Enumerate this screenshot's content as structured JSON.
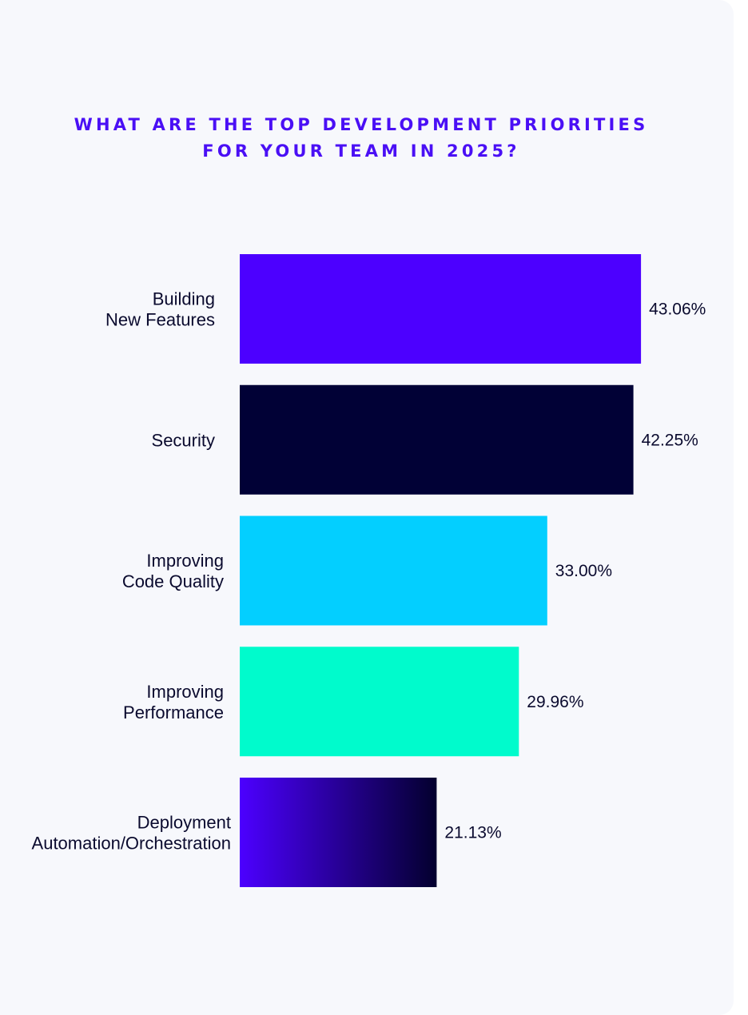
{
  "title_lines": [
    "WHAT ARE THE TOP DEVELOPMENT PRIORITIES",
    "FOR YOUR TEAM IN 2025?"
  ],
  "chart_data": {
    "type": "bar",
    "orientation": "horizontal",
    "title": "WHAT ARE THE TOP DEVELOPMENT PRIORITIES FOR YOUR TEAM IN 2025?",
    "categories": [
      [
        "Building",
        "New Features"
      ],
      [
        "Security"
      ],
      [
        "Improving",
        "Code Quality"
      ],
      [
        "Improving",
        "Performance"
      ],
      [
        "Deployment",
        "Automation/Orchestration"
      ]
    ],
    "values": [
      43.06,
      42.25,
      33.0,
      29.96,
      21.13
    ],
    "value_labels": [
      "43.06%",
      "42.25%",
      "33.00%",
      "29.96%",
      "21.13%"
    ],
    "unit": "%",
    "grid": false,
    "legend": "none",
    "colors": [
      "#4c00ff",
      "#010136",
      "#03cfff",
      "#00fbcc",
      "gradient:#4c00ff-#03002e"
    ]
  }
}
